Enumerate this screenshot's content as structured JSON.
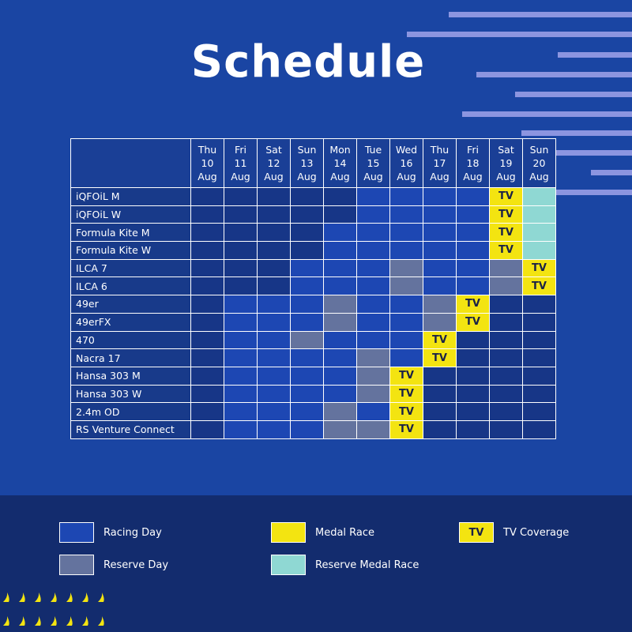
{
  "title": "Schedule",
  "colors": {
    "background": "#1a45a3",
    "none": "#173687",
    "racing_day": "#1d47b3",
    "reserve_day": "#64739e",
    "medal_race": "#f3e411",
    "reserve_medal_race": "#8fd8d3",
    "footer": "#132c6e"
  },
  "days": [
    {
      "dow": "Thu",
      "date": "10",
      "month": "Aug"
    },
    {
      "dow": "Fri",
      "date": "11",
      "month": "Aug"
    },
    {
      "dow": "Sat",
      "date": "12",
      "month": "Aug"
    },
    {
      "dow": "Sun",
      "date": "13",
      "month": "Aug"
    },
    {
      "dow": "Mon",
      "date": "14",
      "month": "Aug"
    },
    {
      "dow": "Tue",
      "date": "15",
      "month": "Aug"
    },
    {
      "dow": "Wed",
      "date": "16",
      "month": "Aug"
    },
    {
      "dow": "Thu",
      "date": "17",
      "month": "Aug"
    },
    {
      "dow": "Fri",
      "date": "18",
      "month": "Aug"
    },
    {
      "dow": "Sat",
      "date": "19",
      "month": "Aug"
    },
    {
      "dow": "Sun",
      "date": "20",
      "month": "Aug"
    }
  ],
  "tv_label": "TV",
  "events": [
    {
      "name": "iQFOiL M",
      "cells": [
        "none",
        "none",
        "none",
        "none",
        "none",
        "race",
        "race",
        "race",
        "race",
        "medal-tv",
        "rmedal"
      ]
    },
    {
      "name": "iQFOiL W",
      "cells": [
        "none",
        "none",
        "none",
        "none",
        "none",
        "race",
        "race",
        "race",
        "race",
        "medal-tv",
        "rmedal"
      ]
    },
    {
      "name": "Formula Kite M",
      "cells": [
        "none",
        "none",
        "none",
        "none",
        "race",
        "race",
        "race",
        "race",
        "race",
        "medal-tv",
        "rmedal"
      ]
    },
    {
      "name": "Formula Kite W",
      "cells": [
        "none",
        "none",
        "none",
        "none",
        "race",
        "race",
        "race",
        "race",
        "race",
        "medal-tv",
        "rmedal"
      ]
    },
    {
      "name": "ILCA 7",
      "cells": [
        "none",
        "none",
        "none",
        "race",
        "race",
        "race",
        "reserve",
        "race",
        "race",
        "reserve",
        "medal-tv"
      ]
    },
    {
      "name": "ILCA 6",
      "cells": [
        "none",
        "none",
        "none",
        "race",
        "race",
        "race",
        "reserve",
        "race",
        "race",
        "reserve",
        "medal-tv"
      ]
    },
    {
      "name": "49er",
      "cells": [
        "none",
        "race",
        "race",
        "race",
        "reserve",
        "race",
        "race",
        "reserve",
        "medal-tv",
        "none",
        "none"
      ]
    },
    {
      "name": "49erFX",
      "cells": [
        "none",
        "race",
        "race",
        "race",
        "reserve",
        "race",
        "race",
        "reserve",
        "medal-tv",
        "none",
        "none"
      ]
    },
    {
      "name": "470",
      "cells": [
        "none",
        "race",
        "race",
        "reserve",
        "race",
        "race",
        "race",
        "medal-tv",
        "none",
        "none",
        "none"
      ]
    },
    {
      "name": "Nacra 17",
      "cells": [
        "none",
        "race",
        "race",
        "race",
        "race",
        "reserve",
        "race",
        "medal-tv",
        "none",
        "none",
        "none"
      ]
    },
    {
      "name": "Hansa 303 M",
      "cells": [
        "none",
        "race",
        "race",
        "race",
        "race",
        "reserve",
        "medal-tv",
        "none",
        "none",
        "none",
        "none"
      ]
    },
    {
      "name": "Hansa 303 W",
      "cells": [
        "none",
        "race",
        "race",
        "race",
        "race",
        "reserve",
        "medal-tv",
        "none",
        "none",
        "none",
        "none"
      ]
    },
    {
      "name": "2.4m OD",
      "cells": [
        "none",
        "race",
        "race",
        "race",
        "reserve",
        "race",
        "medal-tv",
        "none",
        "none",
        "none",
        "none"
      ]
    },
    {
      "name": "RS Venture Connect",
      "cells": [
        "none",
        "race",
        "race",
        "race",
        "reserve",
        "reserve",
        "medal-tv",
        "none",
        "none",
        "none",
        "none"
      ]
    }
  ],
  "legend": {
    "racing_day": "Racing Day",
    "reserve_day": "Reserve Day",
    "medal_race": "Medal Race",
    "reserve_medal_race": "Reserve Medal Race",
    "tv_coverage": "TV Coverage",
    "tv_swatch": "TV"
  }
}
